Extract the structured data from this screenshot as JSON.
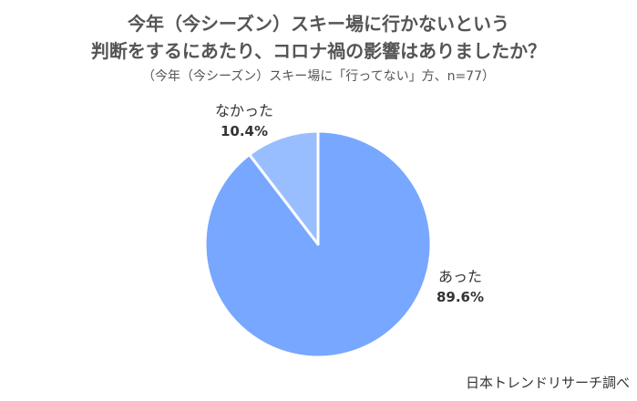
{
  "title_lines": [
    "今年（今シーズン）スキー場に行かないという",
    "判断をするにあたり、コロナ禍の影響はありましたか？"
  ],
  "subtitle": "（今年（今シーズン）スキー場に「行ってない」方、n=77）",
  "source": "日本トレンドリサーチ調べ",
  "colors": {
    "slice_yes": "#78A7FF",
    "slice_no": "#99BEFF",
    "slice_border": "#ffffff"
  },
  "chart_data": {
    "type": "pie",
    "start_angle": "12 o'clock",
    "direction": "clockwise",
    "slices": [
      {
        "label": "あった",
        "value": 89.6,
        "value_label": "89.6%"
      },
      {
        "label": "なかった",
        "value": 10.4,
        "value_label": "10.4%"
      }
    ]
  }
}
